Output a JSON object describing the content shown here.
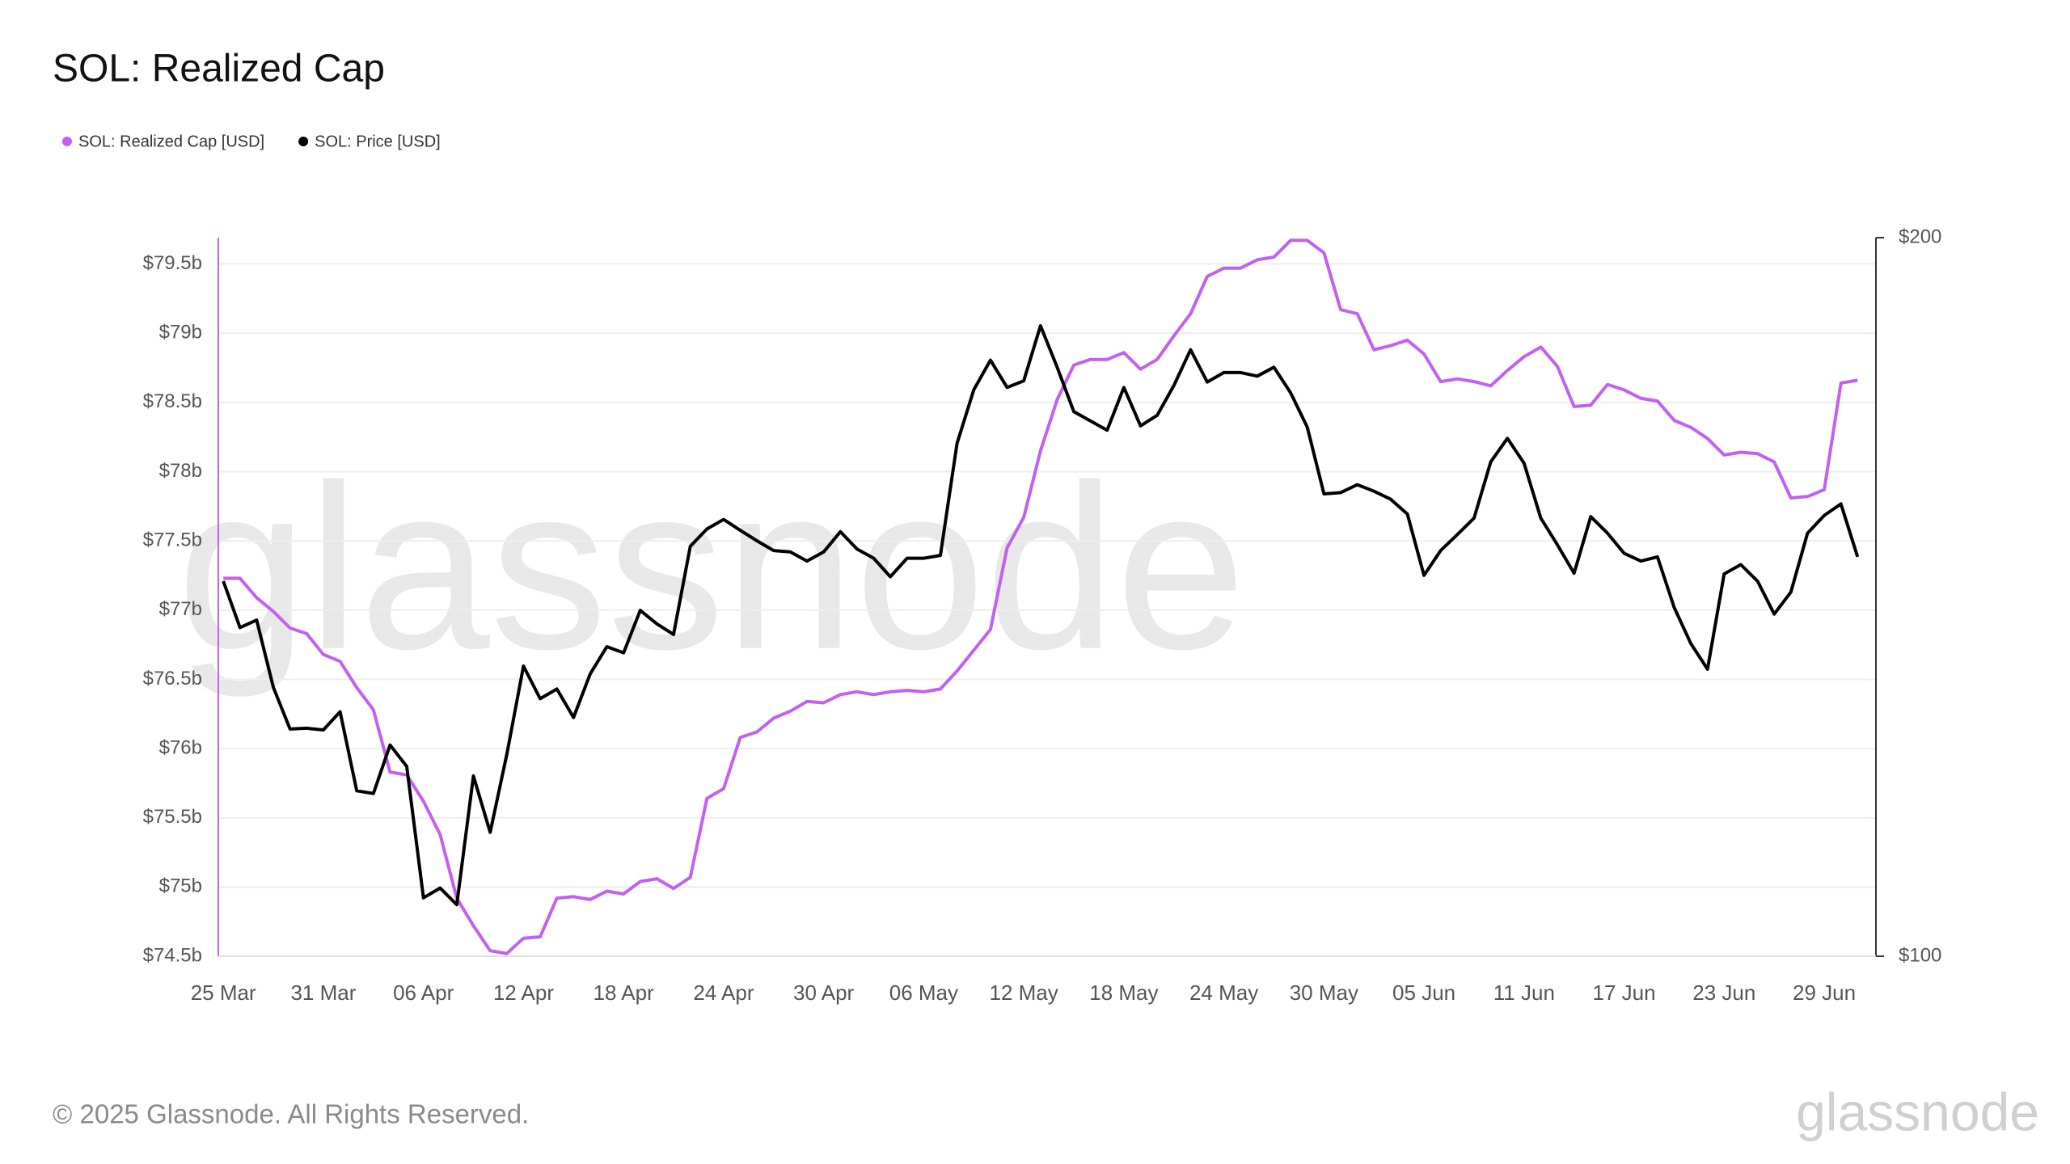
{
  "chart_data": {
    "type": "line",
    "title": "SOL: Realized Cap",
    "watermark": "glassnode",
    "footer": "© 2025 Glassnode. All Rights Reserved.",
    "logo": "glassnode",
    "grid": true,
    "legend_position": "top-left",
    "categories": [
      "25 Mar",
      null,
      null,
      null,
      null,
      null,
      "31 Mar",
      null,
      null,
      null,
      null,
      null,
      "06 Apr",
      null,
      null,
      null,
      null,
      null,
      "12 Apr",
      null,
      null,
      null,
      null,
      null,
      "18 Apr",
      null,
      null,
      null,
      null,
      null,
      "24 Apr",
      null,
      null,
      null,
      null,
      null,
      "30 Apr",
      null,
      null,
      null,
      null,
      null,
      "06 May",
      null,
      null,
      null,
      null,
      null,
      "12 May",
      null,
      null,
      null,
      null,
      null,
      "18 May",
      null,
      null,
      null,
      null,
      null,
      "24 May",
      null,
      null,
      null,
      null,
      null,
      "30 May",
      null,
      null,
      null,
      null,
      null,
      "05 Jun",
      null,
      null,
      null,
      null,
      null,
      "11 Jun",
      null,
      null,
      null,
      null,
      null,
      "17 Jun",
      null,
      null,
      null,
      null,
      null,
      "23 Jun",
      null,
      null,
      null,
      null,
      null,
      "29 Jun",
      null,
      null
    ],
    "ylim": [
      74.5,
      79.69
    ],
    "yticks": [
      {
        "value": 74.5,
        "label": "$74.5b"
      },
      {
        "value": 75,
        "label": "$75b"
      },
      {
        "value": 75.5,
        "label": "$75.5b"
      },
      {
        "value": 76,
        "label": "$76b"
      },
      {
        "value": 76.5,
        "label": "$76.5b"
      },
      {
        "value": 77,
        "label": "$77b"
      },
      {
        "value": 77.5,
        "label": "$77.5b"
      },
      {
        "value": 78,
        "label": "$78b"
      },
      {
        "value": 78.5,
        "label": "$78.5b"
      },
      {
        "value": 79,
        "label": "$79b"
      },
      {
        "value": 79.5,
        "label": "$79.5b"
      }
    ],
    "y2lim": [
      100,
      200
    ],
    "y2ticks": [
      {
        "value": 100,
        "label": "$100"
      },
      {
        "value": 200,
        "label": "$200"
      }
    ],
    "y2_log": true,
    "series": [
      {
        "name": "SOL: Realized Cap [USD]",
        "color": "#c061f0",
        "axis": "y",
        "values": [
          77.23,
          77.23,
          77.09,
          76.99,
          76.87,
          76.83,
          76.68,
          76.63,
          76.44,
          76.28,
          75.83,
          75.81,
          75.62,
          75.38,
          74.92,
          74.72,
          74.54,
          74.52,
          74.63,
          74.64,
          74.92,
          74.93,
          74.91,
          74.97,
          74.95,
          75.04,
          75.06,
          74.99,
          75.07,
          75.64,
          75.71,
          76.08,
          76.12,
          76.22,
          76.27,
          76.34,
          76.33,
          76.39,
          76.41,
          76.39,
          76.41,
          76.42,
          76.41,
          76.43,
          76.56,
          76.71,
          76.86,
          77.45,
          77.67,
          78.15,
          78.52,
          78.77,
          78.81,
          78.81,
          78.86,
          78.74,
          78.81,
          78.98,
          79.14,
          79.41,
          79.47,
          79.47,
          79.53,
          79.55,
          79.67,
          79.67,
          79.58,
          79.17,
          79.14,
          78.88,
          78.91,
          78.95,
          78.85,
          78.65,
          78.67,
          78.65,
          78.62,
          78.73,
          78.83,
          78.9,
          78.76,
          78.47,
          78.48,
          78.63,
          78.59,
          78.53,
          78.51,
          78.37,
          78.32,
          78.24,
          78.12,
          78.14,
          78.13,
          78.07,
          77.81,
          77.82,
          77.87,
          78.64,
          78.66
        ]
      },
      {
        "name": "SOL: Price [USD]",
        "color": "#000000",
        "axis": "y2",
        "values": [
          143.6,
          137.3,
          138.3,
          129.6,
          124.5,
          124.6,
          124.4,
          126.6,
          117.3,
          117.0,
          122.6,
          120.1,
          105.8,
          106.8,
          105.1,
          119.0,
          112.7,
          121.5,
          132.3,
          128.2,
          129.4,
          125.9,
          131.3,
          134.8,
          134.0,
          139.6,
          137.8,
          136.4,
          148.5,
          151.0,
          152.4,
          150.8,
          149.3,
          147.9,
          147.7,
          146.4,
          147.7,
          150.6,
          148.1,
          146.8,
          144.2,
          146.8,
          146.8,
          147.2,
          164.0,
          172.7,
          177.7,
          173.1,
          174.2,
          183.7,
          176.5,
          169.1,
          167.6,
          166.1,
          173.1,
          166.8,
          168.5,
          173.4,
          179.5,
          174.0,
          175.6,
          175.6,
          175.0,
          176.5,
          172.2,
          166.6,
          156.2,
          156.4,
          157.6,
          156.6,
          155.4,
          153.2,
          144.4,
          147.9,
          150.2,
          152.6,
          161.1,
          164.8,
          160.9,
          152.6,
          148.7,
          144.7,
          152.8,
          150.4,
          147.5,
          146.4,
          147.0,
          140.0,
          135.2,
          131.9,
          144.6,
          145.9,
          143.6,
          139.1,
          142.1,
          150.4,
          153.0,
          154.7,
          147.0
        ]
      }
    ]
  }
}
